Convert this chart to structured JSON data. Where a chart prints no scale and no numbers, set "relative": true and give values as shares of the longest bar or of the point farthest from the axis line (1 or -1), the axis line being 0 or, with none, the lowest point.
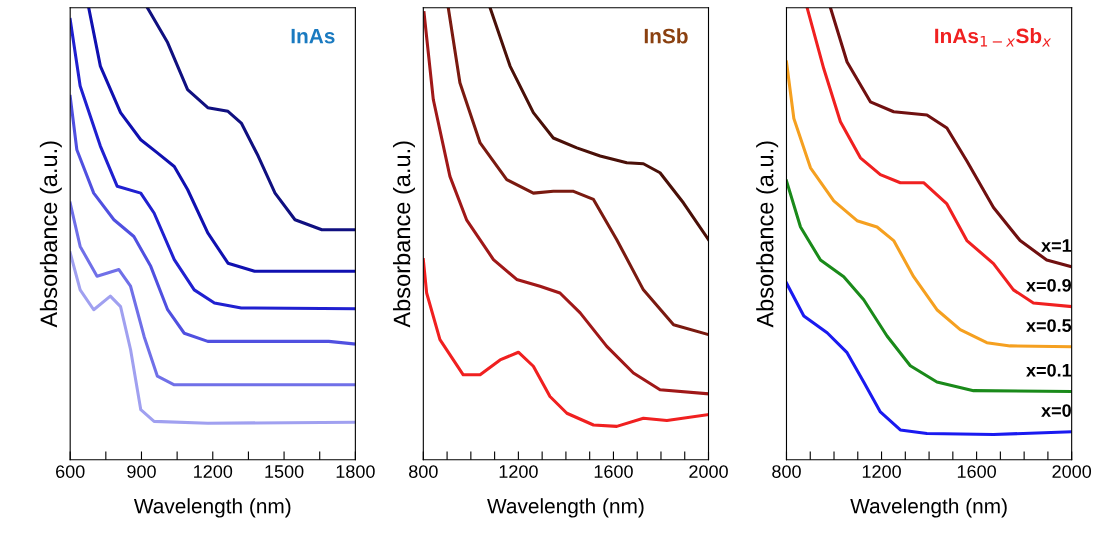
{
  "chart_data": [
    {
      "type": "line",
      "title": "InAs",
      "xlabel": "Wavelength (nm)",
      "ylabel": "Absorbance (a.u.)",
      "relative": true,
      "tick_labels": "x",
      "grid": false,
      "legend": false,
      "marker": "none",
      "line_style": "solid",
      "xlim": [
        600,
        1800
      ],
      "xticks": [
        600,
        {
          "value": 750,
          "label": null
        },
        900,
        {
          "value": 1050,
          "label": null
        },
        1200,
        {
          "value": 1350,
          "label": null
        },
        1500,
        {
          "value": 1650,
          "label": null
        },
        1800
      ],
      "series": [
        {
          "color": "#a0a0f0",
          "x": [
            600,
            642,
            699,
            769,
            812,
            854,
            897,
            953,
            1179,
            1800
          ],
          "values": [
            0.458,
            0.376,
            0.332,
            0.362,
            0.339,
            0.244,
            0.111,
            0.085,
            0.081,
            0.083
          ]
        },
        {
          "color": "#7070e8",
          "x": [
            600,
            642,
            713,
            805,
            854,
            911,
            967,
            1038,
            1800
          ],
          "values": [
            0.568,
            0.472,
            0.406,
            0.421,
            0.384,
            0.273,
            0.185,
            0.166,
            0.166
          ]
        },
        {
          "color": "#5050e0",
          "x": [
            600,
            628,
            699,
            784,
            868,
            939,
            1010,
            1080,
            1179,
            1688,
            1800
          ],
          "values": [
            0.804,
            0.686,
            0.59,
            0.531,
            0.494,
            0.428,
            0.332,
            0.28,
            0.262,
            0.262,
            0.256
          ]
        },
        {
          "color": "#2020d0",
          "x": [
            600,
            642,
            727,
            798,
            897,
            953,
            1038,
            1122,
            1207,
            1320,
            1800
          ],
          "values": [
            0.974,
            0.827,
            0.694,
            0.605,
            0.59,
            0.546,
            0.443,
            0.376,
            0.347,
            0.336,
            0.334
          ]
        },
        {
          "color": "#1010b0",
          "x": [
            678,
            727,
            812,
            897,
            967,
            1038,
            1094,
            1179,
            1264,
            1376,
            1800
          ],
          "values": [
            1.0,
            0.871,
            0.768,
            0.708,
            0.679,
            0.649,
            0.598,
            0.502,
            0.435,
            0.417,
            0.417
          ]
        },
        {
          "color": "#101080",
          "x": [
            925,
            1010,
            1094,
            1179,
            1264,
            1320,
            1391,
            1462,
            1546,
            1659,
            1800
          ],
          "values": [
            1.0,
            0.923,
            0.819,
            0.779,
            0.771,
            0.745,
            0.672,
            0.59,
            0.531,
            0.509,
            0.509
          ]
        }
      ]
    },
    {
      "type": "line",
      "title": "InSb",
      "xlabel": "Wavelength (nm)",
      "ylabel": "Absorbance (a.u.)",
      "relative": true,
      "tick_labels": "x",
      "grid": false,
      "legend": false,
      "marker": "none",
      "line_style": "solid",
      "xlim": [
        800,
        2000
      ],
      "xticks": [
        800,
        {
          "value": 900,
          "label": null
        },
        {
          "value": 1000,
          "label": null
        },
        {
          "value": 1100,
          "label": null
        },
        1200,
        {
          "value": 1300,
          "label": null
        },
        {
          "value": 1400,
          "label": null
        },
        {
          "value": 1500,
          "label": null
        },
        1600,
        {
          "value": 1700,
          "label": null
        },
        {
          "value": 1800,
          "label": null
        },
        {
          "value": 1900,
          "label": null
        },
        2000
      ],
      "series": [
        {
          "color": "#f02020",
          "x": [
            800,
            814,
            870,
            968,
            1039,
            1123,
            1200,
            1263,
            1333,
            1404,
            1516,
            1614,
            1726,
            1825,
            2000
          ],
          "values": [
            0.443,
            0.369,
            0.266,
            0.188,
            0.188,
            0.221,
            0.238,
            0.207,
            0.14,
            0.103,
            0.077,
            0.074,
            0.092,
            0.087,
            0.1
          ]
        },
        {
          "color": "#a01818",
          "x": [
            803,
            842,
            912,
            982,
            1095,
            1193,
            1291,
            1375,
            1460,
            1572,
            1684,
            1796,
            2000
          ],
          "values": [
            0.989,
            0.797,
            0.627,
            0.531,
            0.443,
            0.399,
            0.384,
            0.369,
            0.325,
            0.251,
            0.192,
            0.155,
            0.146
          ]
        },
        {
          "color": "#7a1a10",
          "x": [
            905,
            954,
            1039,
            1151,
            1263,
            1347,
            1432,
            1516,
            1614,
            1726,
            1853,
            2000
          ],
          "values": [
            1.0,
            0.834,
            0.701,
            0.62,
            0.59,
            0.594,
            0.594,
            0.576,
            0.487,
            0.376,
            0.299,
            0.277
          ]
        },
        {
          "color": "#4a1008",
          "x": [
            1081,
            1165,
            1263,
            1347,
            1446,
            1544,
            1656,
            1726,
            1796,
            1895,
            2000
          ],
          "values": [
            1.0,
            0.871,
            0.768,
            0.712,
            0.69,
            0.672,
            0.657,
            0.655,
            0.635,
            0.568,
            0.487
          ]
        }
      ]
    },
    {
      "type": "line",
      "title": "InAs$_{1−x}$Sb$_{x}$",
      "xlabel": "Wavelength (nm)",
      "ylabel": "Absorbance (a.u.)",
      "relative": true,
      "tick_labels": "x",
      "grid": false,
      "legend": false,
      "marker": "none",
      "line_style": "solid",
      "xlim": [
        800,
        2000
      ],
      "xticks": [
        800,
        {
          "value": 900,
          "label": null
        },
        {
          "value": 1000,
          "label": null
        },
        {
          "value": 1100,
          "label": null
        },
        1200,
        {
          "value": 1300,
          "label": null
        },
        {
          "value": 1400,
          "label": null
        },
        {
          "value": 1500,
          "label": null
        },
        1600,
        {
          "value": 1700,
          "label": null
        },
        {
          "value": 1800,
          "label": null
        },
        {
          "value": 1900,
          "label": null
        },
        2000
      ],
      "series": [
        {
          "name": "x=0",
          "color": "#1a1af0",
          "x": [
            800,
            873,
            971,
            1055,
            1125,
            1195,
            1279,
            1391,
            1671,
            2000
          ],
          "values": [
            0.391,
            0.318,
            0.281,
            0.237,
            0.172,
            0.106,
            0.066,
            0.058,
            0.056,
            0.062
          ]
        },
        {
          "name": "x=0.1",
          "color": "#1a8a1a",
          "x": [
            800,
            859,
            943,
            1041,
            1125,
            1223,
            1321,
            1433,
            1587,
            2000
          ],
          "values": [
            0.617,
            0.515,
            0.442,
            0.405,
            0.354,
            0.274,
            0.208,
            0.172,
            0.153,
            0.151
          ]
        },
        {
          "name": "x=0.5",
          "color": "#f5a020",
          "x": [
            800,
            831,
            901,
            999,
            1097,
            1181,
            1251,
            1335,
            1433,
            1531,
            1643,
            1741,
            2000
          ],
          "values": [
            0.88,
            0.755,
            0.646,
            0.573,
            0.529,
            0.515,
            0.485,
            0.405,
            0.332,
            0.288,
            0.259,
            0.252,
            0.25
          ]
        },
        {
          "name": "x=0.9",
          "color": "#f02020",
          "x": [
            887,
            957,
            1027,
            1111,
            1195,
            1279,
            1377,
            1475,
            1559,
            1671,
            1755,
            1839,
            2000
          ],
          "values": [
            1.0,
            0.865,
            0.748,
            0.668,
            0.631,
            0.613,
            0.613,
            0.566,
            0.485,
            0.434,
            0.376,
            0.347,
            0.339
          ]
        },
        {
          "name": "x=1",
          "color": "#701010",
          "x": [
            985,
            1055,
            1153,
            1251,
            1391,
            1475,
            1559,
            1671,
            1783,
            1895,
            2000
          ],
          "values": [
            1.0,
            0.88,
            0.792,
            0.77,
            0.763,
            0.734,
            0.661,
            0.558,
            0.485,
            0.442,
            0.427
          ]
        }
      ]
    }
  ]
}
